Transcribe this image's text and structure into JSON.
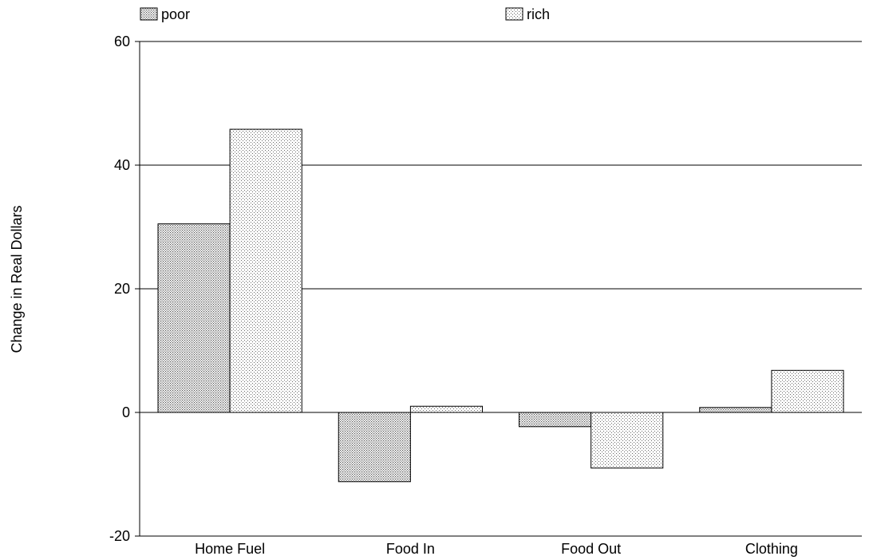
{
  "chart_data": {
    "type": "bar",
    "title": "",
    "xlabel": "",
    "ylabel": "Change in Real Dollars",
    "categories": [
      "Home Fuel",
      "Food In",
      "Food Out",
      "Clothing"
    ],
    "series": [
      {
        "name": "poor",
        "values": [
          30.5,
          -11.2,
          -2.3,
          0.8
        ],
        "pattern": "dense-dots",
        "color": "#000000"
      },
      {
        "name": "rich",
        "values": [
          45.8,
          1.0,
          -9.0,
          6.8
        ],
        "pattern": "sparse-dots",
        "color": "#000000"
      }
    ],
    "ylim": [
      -20,
      60
    ],
    "yticks": [
      "-20",
      "0",
      "20",
      "40",
      "60"
    ],
    "grid": "horizontal",
    "legend_position": "top"
  }
}
